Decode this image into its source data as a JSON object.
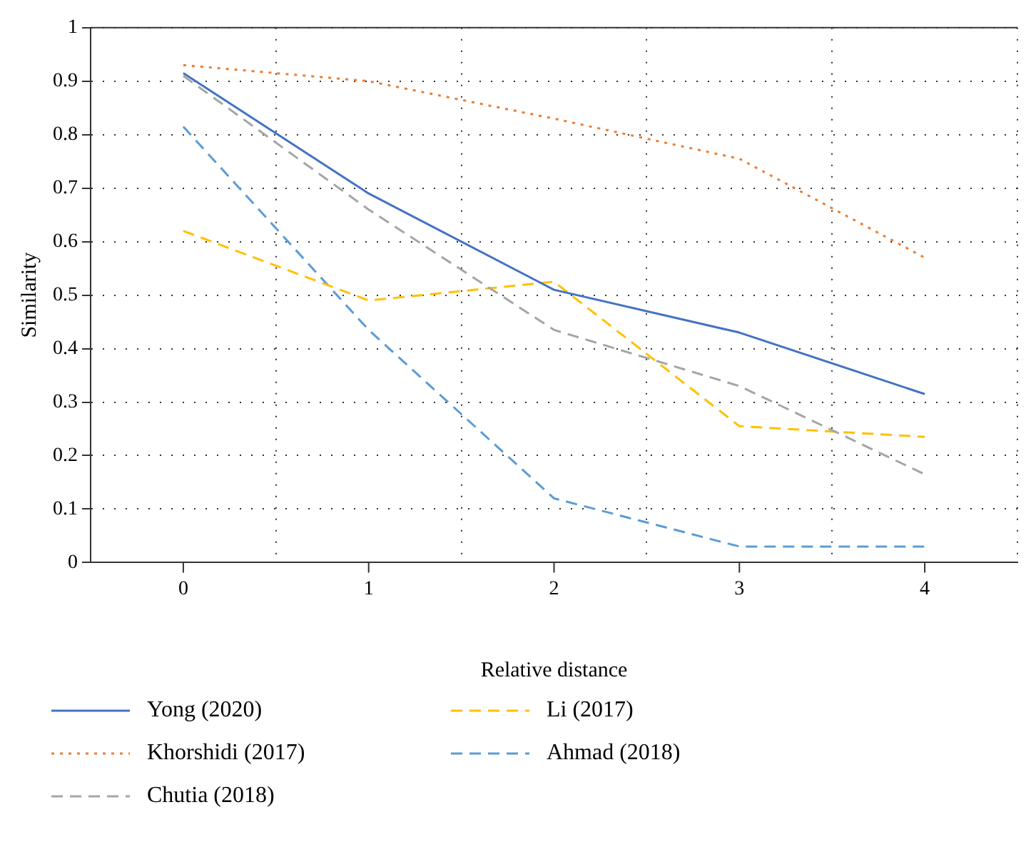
{
  "chart_data": {
    "type": "line",
    "xlabel": "Relative distance",
    "ylabel": "Similarity",
    "categories": [
      "0",
      "1",
      "2",
      "3",
      "4"
    ],
    "series": [
      {
        "name": "Yong (2020)",
        "color": "#4472c4",
        "line_style": "solid",
        "values": [
          0.915,
          0.69,
          0.51,
          0.43,
          0.315
        ]
      },
      {
        "name": "Khorshidi (2017)",
        "color": "#ed7d31",
        "line_style": "dotted",
        "values": [
          0.93,
          0.9,
          0.83,
          0.755,
          0.57
        ]
      },
      {
        "name": "Chutia (2018)",
        "color": "#a5a5a5",
        "line_style": "dashed",
        "values": [
          0.91,
          0.66,
          0.435,
          0.33,
          0.165
        ]
      },
      {
        "name": "Li (2017)",
        "color": "#ffc000",
        "line_style": "dashed",
        "values": [
          0.62,
          0.49,
          0.525,
          0.255,
          0.235
        ]
      },
      {
        "name": "Ahmad (2018)",
        "color": "#5b9bd5",
        "line_style": "dashed",
        "values": [
          0.815,
          0.435,
          0.12,
          0.03,
          0.03
        ]
      }
    ],
    "ylim": [
      0,
      1
    ],
    "yticks": [
      0,
      0.1,
      0.2,
      0.3,
      0.4,
      0.5,
      0.6,
      0.7,
      0.8,
      0.9,
      1
    ],
    "grid": true,
    "legend": "bottom",
    "marker": "none"
  }
}
